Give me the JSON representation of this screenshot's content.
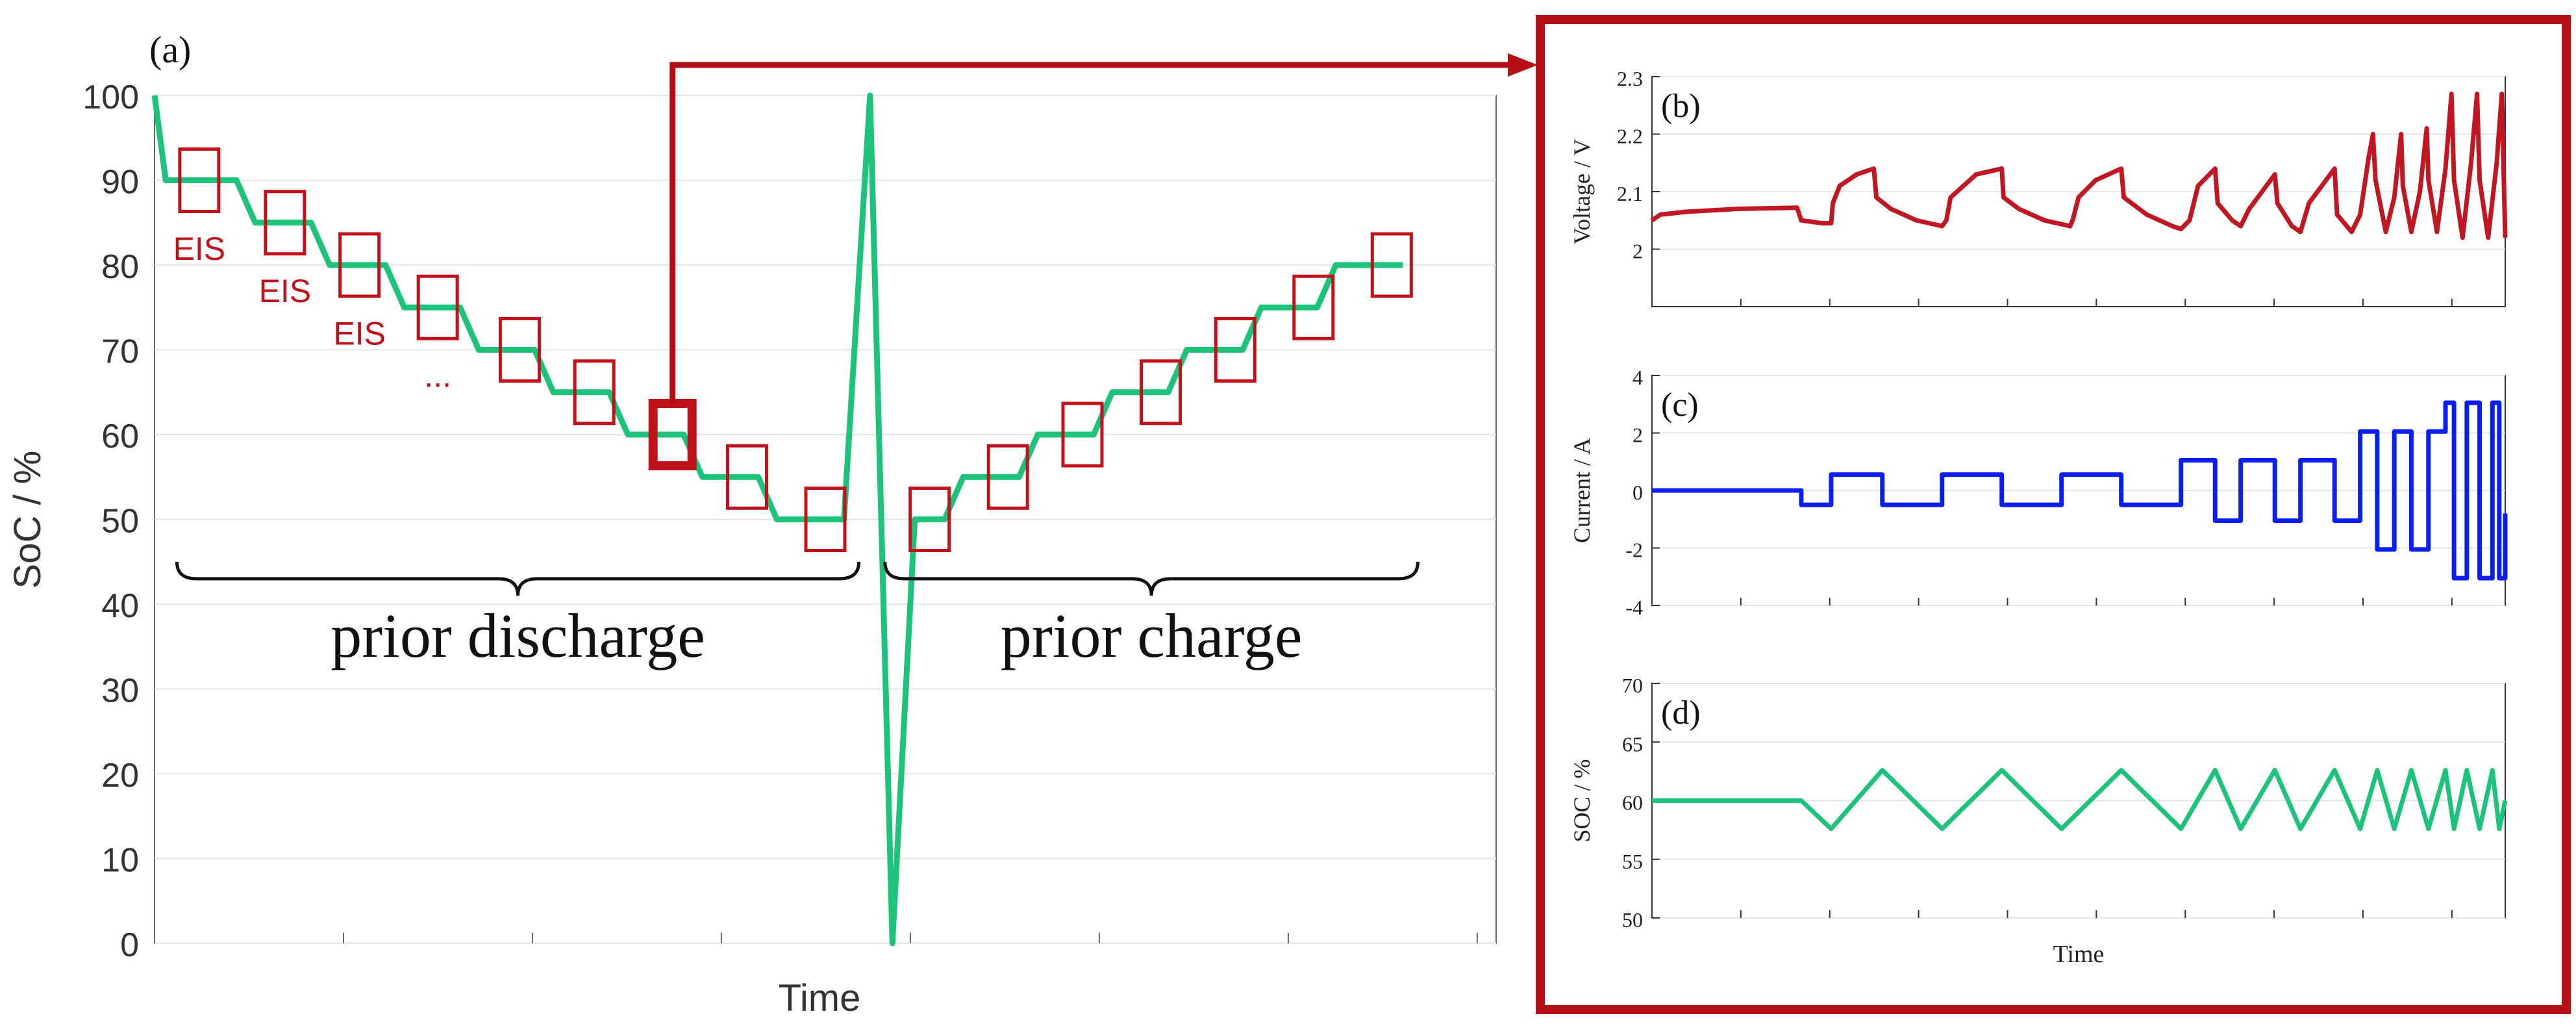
{
  "colors": {
    "soc_line": "#1DC27B",
    "eis_box": "#C0121B",
    "frame": "#B50F16",
    "voltage_line": "#C01722",
    "current_line": "#0B1EF0",
    "soc_small_line": "#1DC27B",
    "axis": "#666666",
    "grid": "#E6E6E6"
  },
  "chart_data": [
    {
      "id": "a",
      "panel_label": "(a)",
      "type": "line",
      "title": "",
      "xlabel": "Time",
      "ylabel": "SoC / %",
      "ylim": [
        0,
        100
      ],
      "yticks": [
        "0",
        "10",
        "20",
        "30",
        "40",
        "50",
        "60",
        "70",
        "80",
        "90",
        "100"
      ],
      "xlim": [
        0,
        36
      ],
      "grid": true,
      "series": [
        {
          "name": "SoC",
          "points": [
            [
              0,
              100
            ],
            [
              0.3,
              90
            ],
            [
              2.2,
              90
            ],
            [
              2.7,
              85
            ],
            [
              4.2,
              85
            ],
            [
              4.7,
              80
            ],
            [
              6.2,
              80
            ],
            [
              6.7,
              75
            ],
            [
              8.2,
              75
            ],
            [
              8.7,
              70
            ],
            [
              10.2,
              70
            ],
            [
              10.7,
              65
            ],
            [
              12.2,
              65
            ],
            [
              12.7,
              60
            ],
            [
              14.2,
              60
            ],
            [
              14.7,
              55
            ],
            [
              16.2,
              55
            ],
            [
              16.7,
              50
            ],
            [
              18.5,
              50
            ],
            [
              19.2,
              100
            ],
            [
              19.8,
              0
            ],
            [
              20.4,
              50
            ],
            [
              21.2,
              50
            ],
            [
              21.7,
              55
            ],
            [
              23.2,
              55
            ],
            [
              23.7,
              60
            ],
            [
              25.2,
              60
            ],
            [
              25.7,
              65
            ],
            [
              27.2,
              65
            ],
            [
              27.7,
              70
            ],
            [
              29.2,
              70
            ],
            [
              29.7,
              75
            ],
            [
              31.2,
              75
            ],
            [
              31.7,
              80
            ],
            [
              33.5,
              80
            ]
          ]
        }
      ],
      "eis_boxes": [
        {
          "x": 1.2,
          "y": 90,
          "highlight": false
        },
        {
          "x": 3.5,
          "y": 85,
          "highlight": false
        },
        {
          "x": 5.5,
          "y": 80,
          "highlight": false
        },
        {
          "x": 7.6,
          "y": 75,
          "highlight": false
        },
        {
          "x": 9.8,
          "y": 70,
          "highlight": false
        },
        {
          "x": 11.8,
          "y": 65,
          "highlight": false
        },
        {
          "x": 13.9,
          "y": 60,
          "highlight": true
        },
        {
          "x": 15.9,
          "y": 55,
          "highlight": false
        },
        {
          "x": 18.0,
          "y": 50,
          "highlight": false
        },
        {
          "x": 20.8,
          "y": 50,
          "highlight": false
        },
        {
          "x": 22.9,
          "y": 55,
          "highlight": false
        },
        {
          "x": 24.9,
          "y": 60,
          "highlight": false
        },
        {
          "x": 27.0,
          "y": 65,
          "highlight": false
        },
        {
          "x": 29.0,
          "y": 70,
          "highlight": false
        },
        {
          "x": 31.1,
          "y": 75,
          "highlight": false
        },
        {
          "x": 33.2,
          "y": 80,
          "highlight": false
        }
      ],
      "annotations": [
        {
          "text": "EIS",
          "x": 1.2,
          "y": 82
        },
        {
          "text": "EIS",
          "x": 3.5,
          "y": 77
        },
        {
          "text": "EIS",
          "x": 5.5,
          "y": 72
        },
        {
          "text": "...",
          "x": 7.6,
          "y": 67
        }
      ],
      "braces": [
        {
          "label": "prior discharge",
          "x_start": 0.6,
          "x_end": 18.9,
          "y": 43
        },
        {
          "label": "prior charge",
          "x_start": 19.6,
          "x_end": 33.9,
          "y": 43
        }
      ]
    },
    {
      "id": "b",
      "panel_label": "(b)",
      "type": "line",
      "ylabel": "Voltage / V",
      "ylim": [
        1.9,
        2.3
      ],
      "yticks": [
        "2",
        "2.1",
        "2.2",
        "2.3"
      ],
      "xlim": [
        0,
        1
      ],
      "grid": true,
      "series": [
        {
          "name": "Voltage",
          "points": [
            [
              0,
              2.05
            ],
            [
              0.01,
              2.06
            ],
            [
              0.04,
              2.065
            ],
            [
              0.1,
              2.07
            ],
            [
              0.17,
              2.072
            ],
            [
              0.175,
              2.05
            ],
            [
              0.2,
              2.045
            ],
            [
              0.21,
              2.045
            ],
            [
              0.212,
              2.08
            ],
            [
              0.22,
              2.11
            ],
            [
              0.24,
              2.13
            ],
            [
              0.26,
              2.14
            ],
            [
              0.263,
              2.09
            ],
            [
              0.28,
              2.07
            ],
            [
              0.31,
              2.05
            ],
            [
              0.34,
              2.04
            ],
            [
              0.345,
              2.05
            ],
            [
              0.35,
              2.09
            ],
            [
              0.38,
              2.13
            ],
            [
              0.41,
              2.14
            ],
            [
              0.412,
              2.09
            ],
            [
              0.43,
              2.07
            ],
            [
              0.46,
              2.05
            ],
            [
              0.49,
              2.04
            ],
            [
              0.493,
              2.05
            ],
            [
              0.5,
              2.09
            ],
            [
              0.52,
              2.12
            ],
            [
              0.55,
              2.14
            ],
            [
              0.553,
              2.09
            ],
            [
              0.58,
              2.06
            ],
            [
              0.61,
              2.04
            ],
            [
              0.62,
              2.035
            ],
            [
              0.63,
              2.05
            ],
            [
              0.64,
              2.11
            ],
            [
              0.66,
              2.14
            ],
            [
              0.663,
              2.08
            ],
            [
              0.68,
              2.05
            ],
            [
              0.69,
              2.04
            ],
            [
              0.7,
              2.07
            ],
            [
              0.72,
              2.11
            ],
            [
              0.73,
              2.13
            ],
            [
              0.733,
              2.08
            ],
            [
              0.75,
              2.04
            ],
            [
              0.76,
              2.03
            ],
            [
              0.77,
              2.08
            ],
            [
              0.79,
              2.12
            ],
            [
              0.8,
              2.14
            ],
            [
              0.803,
              2.06
            ],
            [
              0.82,
              2.03
            ],
            [
              0.83,
              2.06
            ],
            [
              0.84,
              2.16
            ],
            [
              0.845,
              2.2
            ],
            [
              0.848,
              2.12
            ],
            [
              0.86,
              2.03
            ],
            [
              0.87,
              2.09
            ],
            [
              0.878,
              2.2
            ],
            [
              0.88,
              2.11
            ],
            [
              0.89,
              2.03
            ],
            [
              0.9,
              2.1
            ],
            [
              0.908,
              2.21
            ],
            [
              0.91,
              2.12
            ],
            [
              0.92,
              2.03
            ],
            [
              0.93,
              2.14
            ],
            [
              0.937,
              2.27
            ],
            [
              0.94,
              2.12
            ],
            [
              0.95,
              2.02
            ],
            [
              0.96,
              2.15
            ],
            [
              0.967,
              2.27
            ],
            [
              0.97,
              2.12
            ],
            [
              0.98,
              2.02
            ],
            [
              0.99,
              2.15
            ],
            [
              0.996,
              2.27
            ],
            [
              1.0,
              2.02
            ]
          ]
        }
      ]
    },
    {
      "id": "c",
      "panel_label": "(c)",
      "type": "line",
      "ylabel": "Current / A",
      "ylim": [
        -4,
        4
      ],
      "yticks": [
        "-4",
        "-2",
        "0",
        "2",
        "4"
      ],
      "xlim": [
        0,
        1
      ],
      "grid": true,
      "series": [
        {
          "name": "Current",
          "points": [
            [
              0,
              0
            ],
            [
              0.175,
              0
            ],
            [
              0.175,
              -0.5
            ],
            [
              0.21,
              -0.5
            ],
            [
              0.21,
              0.55
            ],
            [
              0.27,
              0.55
            ],
            [
              0.27,
              -0.5
            ],
            [
              0.34,
              -0.5
            ],
            [
              0.34,
              0.55
            ],
            [
              0.41,
              0.55
            ],
            [
              0.41,
              -0.5
            ],
            [
              0.48,
              -0.5
            ],
            [
              0.48,
              0.55
            ],
            [
              0.55,
              0.55
            ],
            [
              0.55,
              -0.5
            ],
            [
              0.62,
              -0.5
            ],
            [
              0.62,
              1.05
            ],
            [
              0.66,
              1.05
            ],
            [
              0.66,
              -1.05
            ],
            [
              0.69,
              -1.05
            ],
            [
              0.69,
              1.05
            ],
            [
              0.73,
              1.05
            ],
            [
              0.73,
              -1.05
            ],
            [
              0.76,
              -1.05
            ],
            [
              0.76,
              1.05
            ],
            [
              0.8,
              1.05
            ],
            [
              0.8,
              -1.05
            ],
            [
              0.83,
              -1.05
            ],
            [
              0.83,
              2.05
            ],
            [
              0.85,
              2.05
            ],
            [
              0.85,
              -2.05
            ],
            [
              0.87,
              -2.05
            ],
            [
              0.87,
              2.05
            ],
            [
              0.89,
              2.05
            ],
            [
              0.89,
              -2.05
            ],
            [
              0.91,
              -2.05
            ],
            [
              0.91,
              2.05
            ],
            [
              0.93,
              2.05
            ],
            [
              0.93,
              3.05
            ],
            [
              0.94,
              3.05
            ],
            [
              0.94,
              -3.05
            ],
            [
              0.955,
              -3.05
            ],
            [
              0.955,
              3.05
            ],
            [
              0.97,
              3.05
            ],
            [
              0.97,
              -3.05
            ],
            [
              0.985,
              -3.05
            ],
            [
              0.985,
              3.05
            ],
            [
              0.993,
              3.05
            ],
            [
              0.993,
              -3.05
            ],
            [
              1.0,
              -3.05
            ],
            [
              1.0,
              -0.8
            ]
          ]
        }
      ]
    },
    {
      "id": "d",
      "panel_label": "(d)",
      "type": "line",
      "ylabel": "SOC / %",
      "xlabel": "Time",
      "ylim": [
        50,
        70
      ],
      "yticks": [
        "50",
        "55",
        "60",
        "65",
        "70"
      ],
      "xlim": [
        0,
        1
      ],
      "grid": true,
      "series": [
        {
          "name": "SOC",
          "points": [
            [
              0,
              60
            ],
            [
              0.175,
              60
            ],
            [
              0.21,
              57.6
            ],
            [
              0.27,
              62.6
            ],
            [
              0.34,
              57.6
            ],
            [
              0.41,
              62.6
            ],
            [
              0.48,
              57.6
            ],
            [
              0.55,
              62.6
            ],
            [
              0.62,
              57.6
            ],
            [
              0.66,
              62.6
            ],
            [
              0.69,
              57.6
            ],
            [
              0.73,
              62.6
            ],
            [
              0.76,
              57.6
            ],
            [
              0.8,
              62.6
            ],
            [
              0.83,
              57.6
            ],
            [
              0.85,
              62.6
            ],
            [
              0.87,
              57.6
            ],
            [
              0.89,
              62.6
            ],
            [
              0.91,
              57.6
            ],
            [
              0.93,
              62.6
            ],
            [
              0.94,
              57.6
            ],
            [
              0.955,
              62.6
            ],
            [
              0.97,
              57.6
            ],
            [
              0.985,
              62.6
            ],
            [
              0.993,
              57.6
            ],
            [
              1.0,
              60
            ]
          ]
        }
      ]
    }
  ]
}
